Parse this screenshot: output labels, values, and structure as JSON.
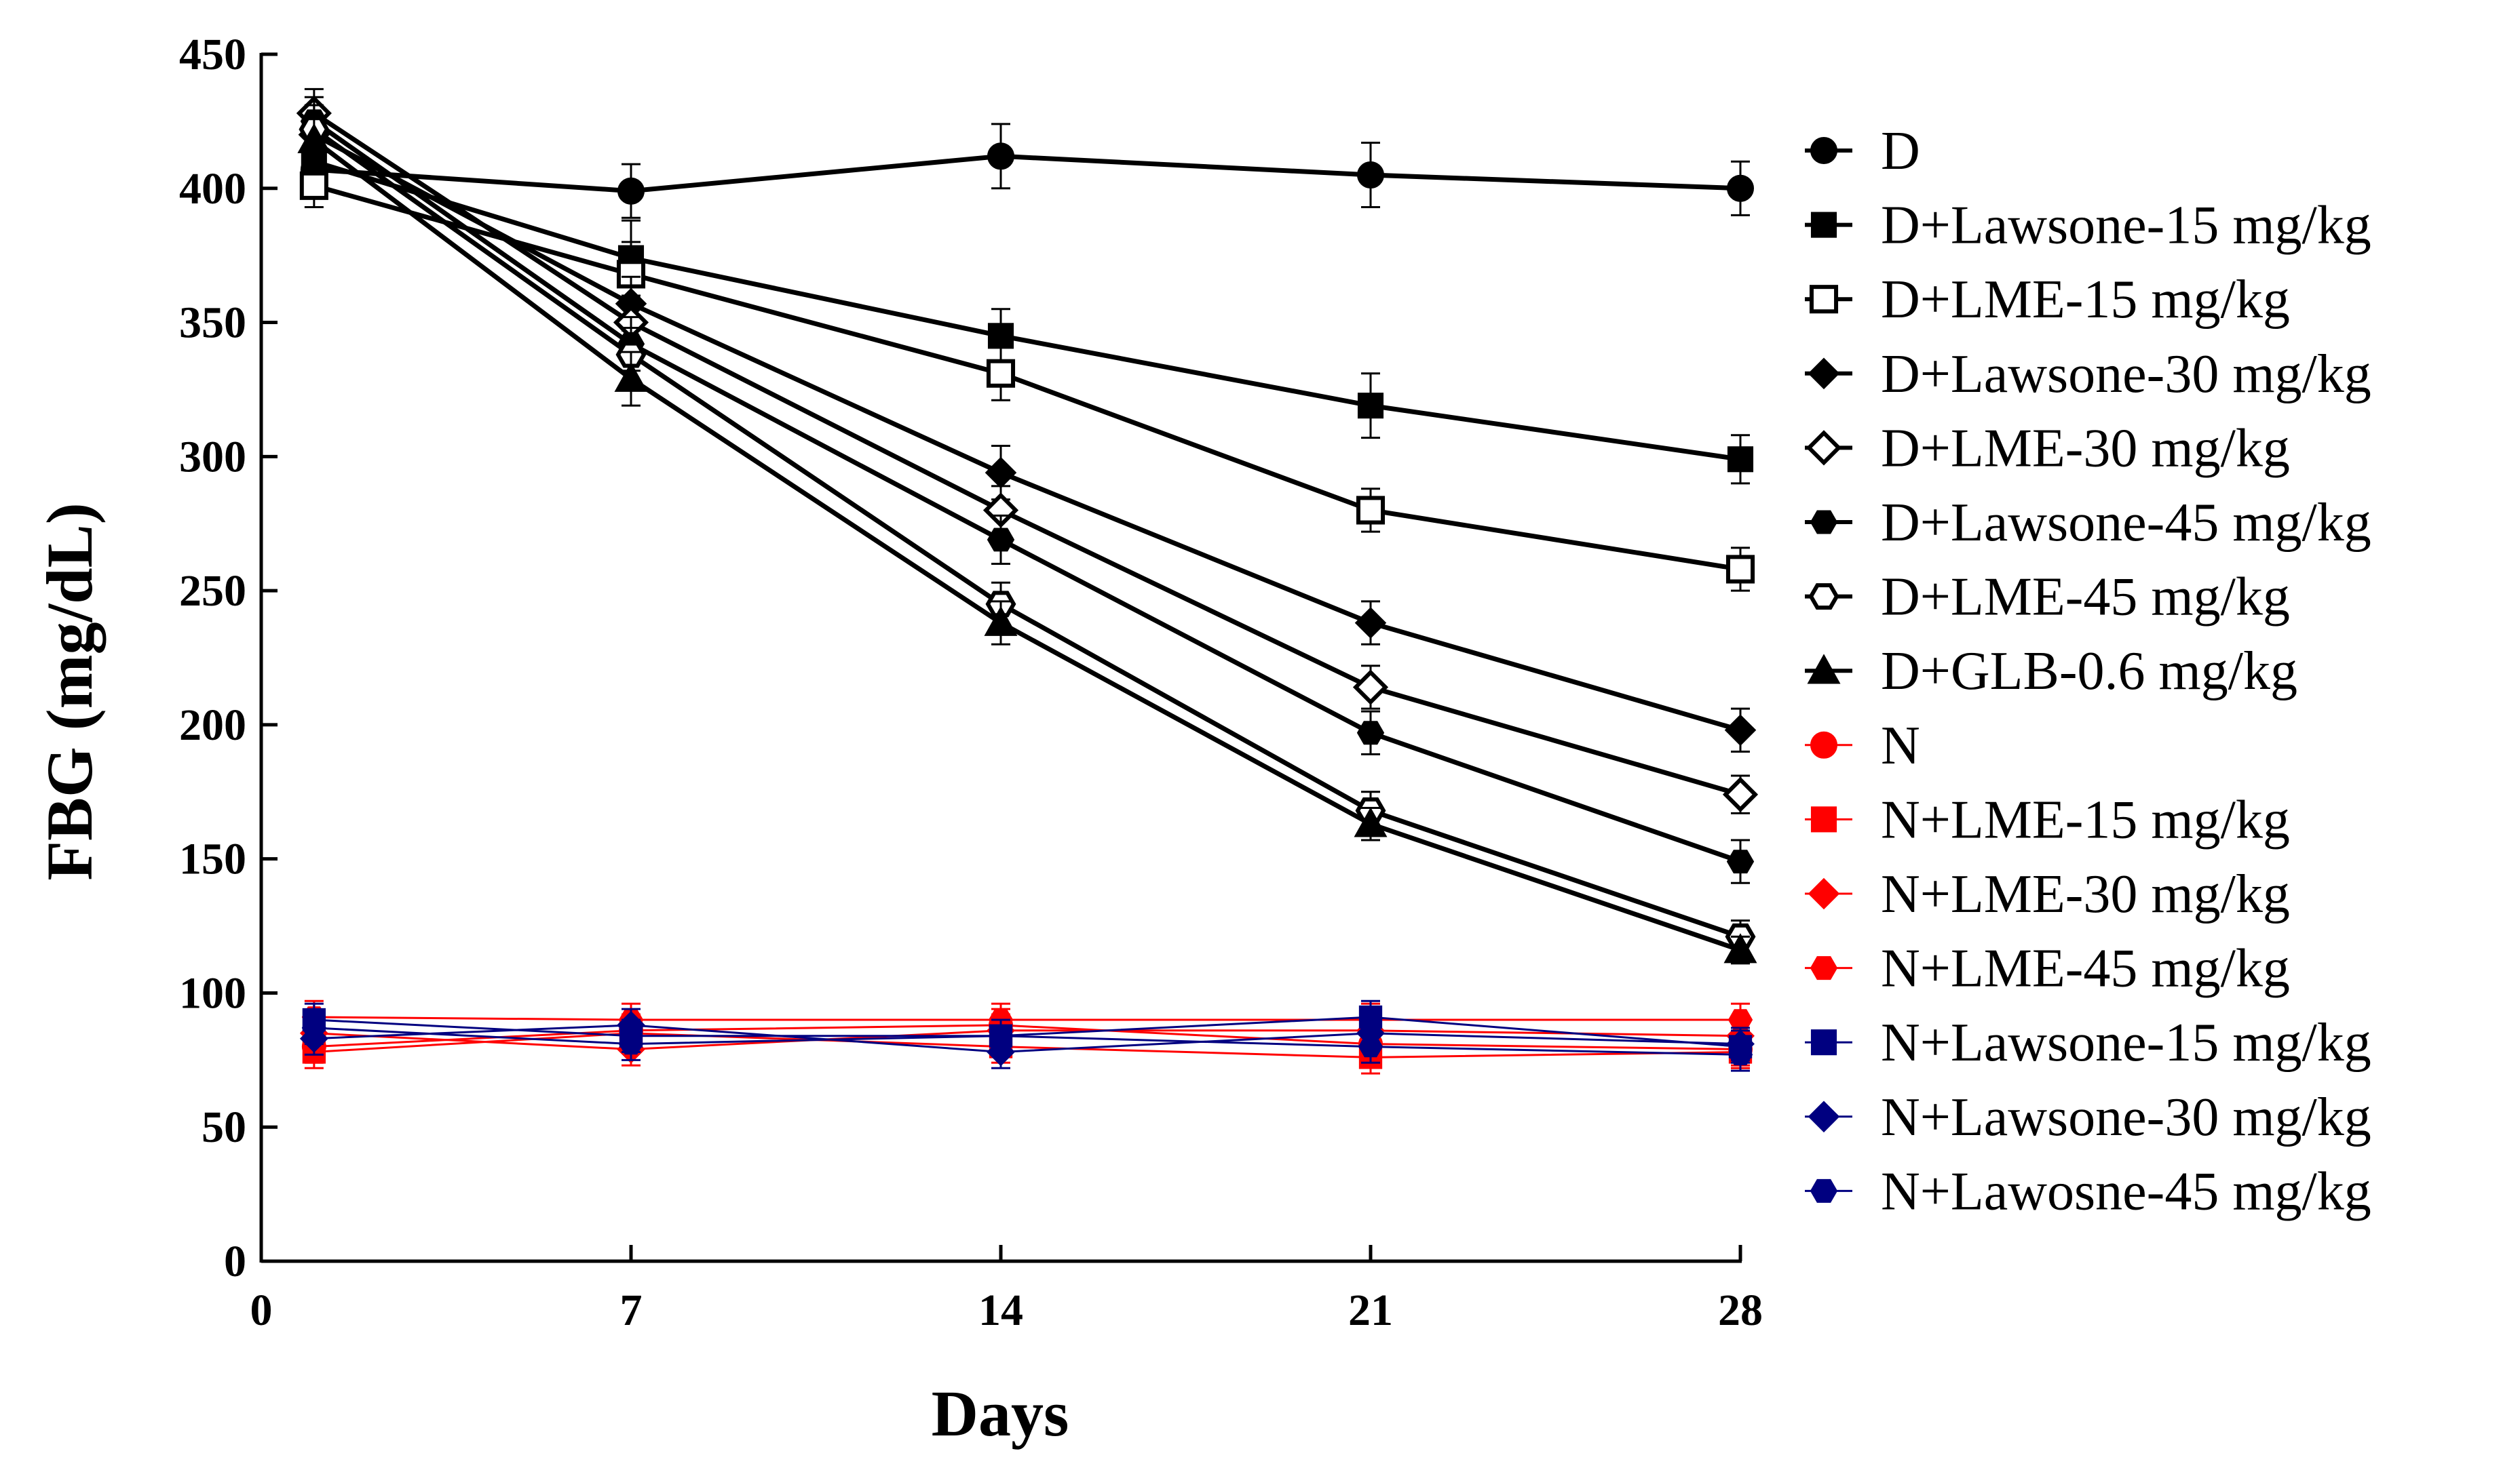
{
  "chart_data": {
    "type": "line",
    "title": "",
    "xlabel": "Days",
    "ylabel": "FBG (mg/dL)",
    "xlim": [
      0,
      28
    ],
    "ylim": [
      0,
      450
    ],
    "xticks": [
      "0",
      "7",
      "14",
      "21",
      "28"
    ],
    "yticks": [
      "0",
      "50",
      "100",
      "150",
      "200",
      "250",
      "300",
      "350",
      "400",
      "450"
    ],
    "grid": false,
    "legend_position": "right",
    "x": [
      1,
      7,
      14,
      21,
      28
    ],
    "series": [
      {
        "name": "D",
        "marker": "circle-filled",
        "color": "#000000",
        "values": [
          407,
          399,
          412,
          405,
          400
        ],
        "errors": [
          8,
          10,
          12,
          12,
          10
        ]
      },
      {
        "name": "D+Lawsone-15 mg/kg",
        "marker": "square-filled",
        "color": "#000000",
        "values": [
          410,
          374,
          345,
          319,
          299
        ],
        "errors": [
          9,
          14,
          10,
          12,
          9
        ]
      },
      {
        "name": "D+LME-15 mg/kg",
        "marker": "square-open",
        "color": "#000000",
        "values": [
          401,
          368,
          331,
          280,
          258
        ],
        "errors": [
          8,
          12,
          10,
          8,
          8
        ]
      },
      {
        "name": "D+Lawsone-30 mg/kg",
        "marker": "diamond-filled",
        "color": "#000000",
        "values": [
          420,
          357,
          294,
          238,
          198
        ],
        "errors": [
          9,
          10,
          10,
          8,
          8
        ]
      },
      {
        "name": "D+LME-30 mg/kg",
        "marker": "diamond-open",
        "color": "#000000",
        "values": [
          428,
          350,
          280,
          214,
          174
        ],
        "errors": [
          9,
          10,
          9,
          8,
          7
        ]
      },
      {
        "name": "D+Lawsone-45 mg/kg",
        "marker": "hexagon-filled",
        "color": "#000000",
        "values": [
          425,
          342,
          269,
          197,
          149
        ],
        "errors": [
          9,
          10,
          9,
          8,
          8
        ]
      },
      {
        "name": "D+LME-45 mg/kg",
        "marker": "hexagon-open",
        "color": "#000000",
        "values": [
          422,
          338,
          245,
          168,
          121
        ],
        "errors": [
          9,
          10,
          8,
          7,
          6
        ]
      },
      {
        "name": "D+GLB-0.6 mg/kg",
        "marker": "triangle-filled",
        "color": "#000000",
        "values": [
          418,
          329,
          238,
          163,
          116
        ],
        "errors": [
          9,
          10,
          8,
          6,
          5
        ]
      },
      {
        "name": "N",
        "marker": "circle-filled",
        "color": "#ff0000",
        "values": [
          80,
          86,
          88,
          81,
          79
        ],
        "errors": [
          6,
          6,
          6,
          6,
          6
        ]
      },
      {
        "name": "N+LME-15 mg/kg",
        "marker": "square-filled",
        "color": "#ff0000",
        "values": [
          78,
          85,
          80,
          76,
          78
        ],
        "errors": [
          6,
          6,
          6,
          6,
          6
        ]
      },
      {
        "name": "N+LME-30 mg/kg",
        "marker": "diamond-filled",
        "color": "#ff0000",
        "values": [
          85,
          79,
          86,
          86,
          84
        ],
        "errors": [
          6,
          6,
          6,
          6,
          6
        ]
      },
      {
        "name": "N+LME-45 mg/kg",
        "marker": "hexagon-filled",
        "color": "#ff0000",
        "values": [
          91,
          90,
          90,
          90,
          90
        ],
        "errors": [
          6,
          6,
          6,
          6,
          6
        ]
      },
      {
        "name": "N+Lawsone-15 mg/kg",
        "marker": "square-filled",
        "color": "#000080",
        "values": [
          90,
          84,
          84,
          91,
          80
        ],
        "errors": [
          6,
          6,
          6,
          6,
          6
        ]
      },
      {
        "name": "N+Lawsone-30 mg/kg",
        "marker": "diamond-filled",
        "color": "#000080",
        "values": [
          83,
          88,
          78,
          85,
          81
        ],
        "errors": [
          6,
          6,
          6,
          6,
          6
        ]
      },
      {
        "name": "N+Lawosne-45 mg/kg",
        "marker": "hexagon-filled",
        "color": "#000080",
        "values": [
          87,
          81,
          84,
          80,
          77
        ],
        "errors": [
          6,
          6,
          6,
          6,
          6
        ]
      }
    ]
  }
}
